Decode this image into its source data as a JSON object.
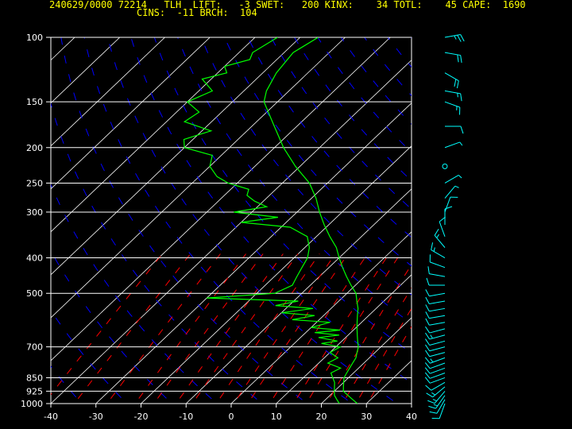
{
  "header": {
    "line1": "240629/0000 72214   TLH  LIFT:   -3 SWET:   200 KINX:    34 TOTL:    45 CAPE:  1690",
    "line2": "CINS:  -11 BRCH:  104"
  },
  "colors": {
    "background": "#000000",
    "header_text": "#ffff00",
    "isobar": "#ffffff",
    "isotherm": "#ffffff",
    "dry_adiabat": "#0000ff",
    "mixing_ratio": "#ff0000",
    "temperature_profile": "#00ff00",
    "dewpoint_profile": "#00ff00",
    "wind_barbs": "#00ffff"
  },
  "chart_data": {
    "type": "line",
    "chart_kind": "skew-T log-P sounding",
    "title": "",
    "xlabel": "",
    "ylabel": "",
    "x_ticks": [
      "-40",
      "-30",
      "-20",
      "-10",
      "0",
      "10",
      "20",
      "30",
      "40"
    ],
    "x_tick_values": [
      -40,
      -30,
      -20,
      -10,
      0,
      10,
      20,
      30,
      40
    ],
    "xlim": [
      -40,
      40
    ],
    "y_ticks": [
      "100",
      "150",
      "200",
      "250",
      "300",
      "400",
      "500",
      "700",
      "850",
      "925",
      "1000"
    ],
    "y_tick_values": [
      100,
      150,
      200,
      250,
      300,
      400,
      500,
      700,
      850,
      925,
      1000
    ],
    "ylim": [
      1000,
      100
    ],
    "y_scale": "log",
    "isotherm_values": [
      -160,
      -150,
      -140,
      -130,
      -120,
      -110,
      -100,
      -90,
      -80,
      -70,
      -60,
      -50,
      -40,
      -30,
      -20,
      -10,
      0,
      10,
      20,
      30,
      40
    ],
    "dry_adiabat_theta_K": [
      230,
      240,
      250,
      260,
      270,
      280,
      290,
      300,
      310,
      320,
      330,
      340,
      350,
      360,
      370,
      380,
      390,
      400,
      410,
      420,
      430,
      440,
      450,
      460,
      470
    ],
    "mixing_ratio_values": [
      0.1,
      0.2,
      0.4,
      0.7,
      1,
      1.5,
      2,
      3,
      4,
      5,
      7,
      10,
      12,
      16,
      20,
      24,
      28
    ],
    "series": [
      {
        "pressure_hPa": [
          1000,
          975,
          950,
          925,
          900,
          875,
          850,
          825,
          800,
          775,
          750,
          725,
          700,
          675,
          650,
          625,
          600,
          575,
          550,
          525,
          500,
          475,
          450,
          425,
          400,
          375,
          350,
          325,
          300,
          275,
          250,
          225,
          200,
          175,
          150,
          140,
          125,
          110,
          100
        ],
        "values": [
          28.0,
          26.0,
          24.0,
          22.0,
          21.0,
          20.0,
          19.0,
          18.5,
          18.0,
          17.5,
          17.0,
          16.0,
          15.0,
          13.5,
          12.0,
          10.5,
          9.0,
          7.5,
          6.0,
          4.0,
          2.0,
          -1.0,
          -4.0,
          -7.0,
          -10.0,
          -13.0,
          -17.0,
          -21.0,
          -25.0,
          -29.0,
          -34.0,
          -41.0,
          -48.0,
          -55.0,
          -63.0,
          -65.0,
          -67.0,
          -68.0,
          -66.0
        ]
      },
      {
        "pressure_hPa": [
          1000,
          975,
          950,
          925,
          900,
          875,
          850,
          825,
          800,
          775,
          750,
          725,
          700,
          685,
          675,
          660,
          650,
          640,
          630,
          620,
          600,
          590,
          575,
          565,
          550,
          540,
          525,
          515,
          500,
          475,
          450,
          425,
          400,
          375,
          350,
          330,
          320,
          310,
          300,
          290,
          280,
          270,
          260,
          250,
          240,
          225,
          210,
          200,
          190,
          180,
          170,
          160,
          150,
          140,
          130,
          125,
          120,
          115,
          110,
          100
        ],
        "values": [
          24.0,
          22.5,
          21.0,
          20.0,
          19.0,
          18.0,
          16.5,
          15.0,
          16.0,
          12.0,
          13.0,
          10.0,
          11.0,
          6.0,
          9.0,
          4.0,
          8.0,
          2.0,
          7.0,
          0.0,
          3.0,
          -6.0,
          -2.0,
          -10.0,
          -4.0,
          -13.0,
          -9.0,
          -30.0,
          -16.0,
          -14.0,
          -15.0,
          -16.0,
          -17.0,
          -19.0,
          -22.0,
          -28.0,
          -40.0,
          -33.0,
          -44.0,
          -38.0,
          -42.0,
          -45.0,
          -46.0,
          -52.0,
          -56.0,
          -60.0,
          -62.0,
          -70.0,
          -72.0,
          -68.0,
          -76.0,
          -75.0,
          -80.0,
          -77.0,
          -82.0,
          -78.0,
          -80.0,
          -76.0,
          -77.0,
          -75.0
        ]
      }
    ],
    "wind_barbs": {
      "pressure_hPa": [
        1000,
        975,
        950,
        925,
        900,
        875,
        850,
        825,
        800,
        775,
        750,
        725,
        700,
        675,
        650,
        625,
        600,
        575,
        550,
        525,
        500,
        475,
        450,
        425,
        400,
        375,
        350,
        325,
        300,
        275,
        250,
        225,
        200,
        175,
        150,
        140,
        125,
        110,
        100
      ],
      "direction_deg": [
        200,
        210,
        215,
        220,
        230,
        240,
        250,
        250,
        250,
        250,
        250,
        255,
        255,
        255,
        255,
        255,
        260,
        260,
        260,
        260,
        260,
        270,
        280,
        290,
        300,
        320,
        340,
        0,
        20,
        40,
        60,
        80,
        70,
        90,
        110,
        100,
        120,
        100,
        80
      ],
      "speed_kt": [
        10,
        10,
        15,
        15,
        15,
        10,
        10,
        10,
        10,
        10,
        15,
        10,
        10,
        10,
        15,
        10,
        10,
        10,
        10,
        10,
        10,
        10,
        10,
        10,
        15,
        15,
        10,
        10,
        10,
        5,
        5,
        0,
        5,
        10,
        15,
        15,
        20,
        20,
        25
      ]
    }
  }
}
